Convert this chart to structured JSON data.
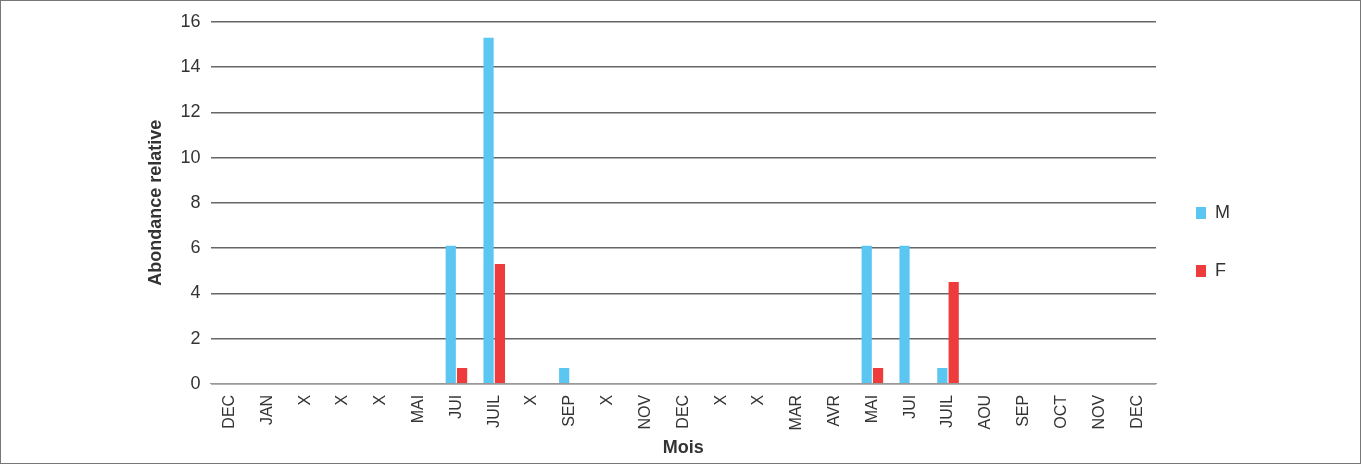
{
  "chart_data": {
    "type": "bar",
    "xlabel": "Mois",
    "ylabel": "Abondance relative",
    "categories": [
      "DEC",
      "JAN",
      "X",
      "X",
      "X",
      "MAI",
      "JUI",
      "JUIL",
      "X",
      "SEP",
      "X",
      "NOV",
      "DEC",
      "X",
      "X",
      "MAR",
      "AVR",
      "MAI",
      "JUI",
      "JUIL",
      "AOU",
      "SEP",
      "OCT",
      "NOV",
      "DEC"
    ],
    "series": [
      {
        "name": "M",
        "color": "#5bc6f2",
        "values": [
          0,
          0,
          0,
          0,
          0,
          0,
          6.1,
          15.3,
          0,
          0.7,
          0,
          0,
          0,
          0,
          0,
          0,
          0,
          6.1,
          6.1,
          0.7,
          0,
          0,
          0,
          0,
          0
        ]
      },
      {
        "name": "F",
        "color": "#ee3b3b",
        "values": [
          0,
          0,
          0,
          0,
          0,
          0,
          0.7,
          5.3,
          0,
          0,
          0,
          0,
          0,
          0,
          0,
          0,
          0,
          0.7,
          0,
          4.5,
          0,
          0,
          0,
          0,
          0
        ]
      }
    ],
    "ylim": [
      0,
      16
    ],
    "yticks": [
      0,
      2,
      4,
      6,
      8,
      10,
      12,
      14,
      16
    ],
    "grid": "y",
    "legend": "right"
  }
}
